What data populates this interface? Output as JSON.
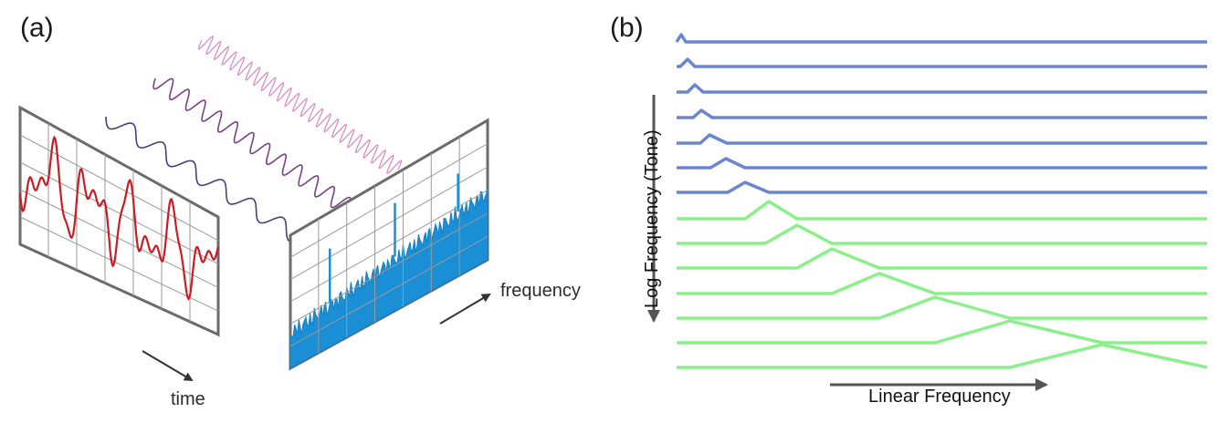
{
  "panel_a": {
    "label": "(a)",
    "time_axis_label": "time",
    "frequency_axis_label": "frequency",
    "colors": {
      "signal": "#c81d25",
      "spectrum": "#1a8fd6",
      "frame": "#6b6b6b",
      "waves": [
        "#4a3d7a",
        "#7b3f86",
        "#9c4f9a",
        "#d98fc6"
      ]
    }
  },
  "panel_b": {
    "label": "(b)",
    "x_axis_label": "Linear Frequency",
    "y_axis_label": "Log Frequency (Tone)",
    "colors": {
      "upper_lines": "#6b86d0",
      "lower_lines": "#8cf08a",
      "axis": "#555555"
    }
  }
}
